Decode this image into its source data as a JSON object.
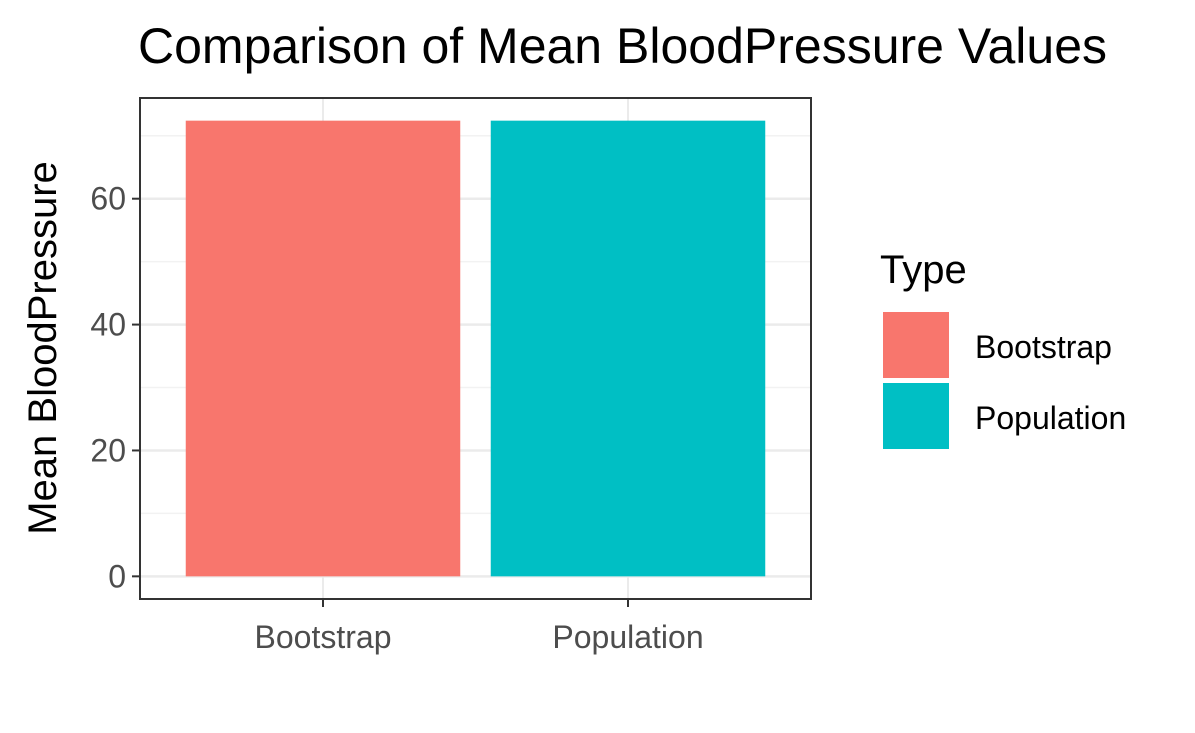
{
  "chart_data": {
    "type": "bar",
    "title": "Comparison of Mean BloodPressure Values",
    "xlabel": "",
    "ylabel": "Mean BloodPressure",
    "categories": [
      "Bootstrap",
      "Population"
    ],
    "values": [
      72.4,
      72.4
    ],
    "colors": [
      "#F8766D",
      "#00BFC4"
    ],
    "ylim": [
      -3.6,
      76.0
    ],
    "yticks": [
      0,
      20,
      40,
      60
    ],
    "grid": true,
    "legend": {
      "title": "Type",
      "position": "right",
      "entries": [
        {
          "label": "Bootstrap",
          "color": "#F8766D"
        },
        {
          "label": "Population",
          "color": "#00BFC4"
        }
      ]
    }
  }
}
